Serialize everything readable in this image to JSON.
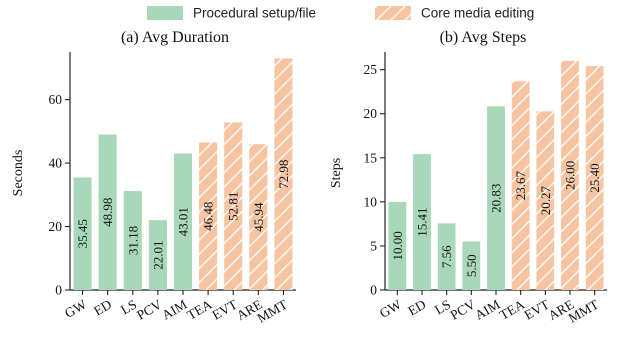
{
  "legend": [
    {
      "label": "Procedural setup/file",
      "color": "#a8d8b9"
    },
    {
      "label": "Core media editing",
      "color": "#f7c4a2"
    }
  ],
  "chart_data": [
    {
      "type": "bar",
      "title": "(a) Avg Duration",
      "ylabel": "Seconds",
      "ylim": [
        0,
        75
      ],
      "yticks": [
        0,
        20,
        40,
        60
      ],
      "categories": [
        "GW",
        "ED",
        "LS",
        "PCV",
        "AIM",
        "TEA",
        "EVT",
        "ARE",
        "MMT"
      ],
      "groups": [
        "Procedural setup/file",
        "Procedural setup/file",
        "Procedural setup/file",
        "Procedural setup/file",
        "Procedural setup/file",
        "Core media editing",
        "Core media editing",
        "Core media editing",
        "Core media editing"
      ],
      "values": [
        35.45,
        48.98,
        31.18,
        22.01,
        43.01,
        46.48,
        52.81,
        45.94,
        72.98
      ],
      "value_labels": [
        "35.45",
        "48.98",
        "31.18",
        "22.01",
        "43.01",
        "46.48",
        "52.81",
        "45.94",
        "72.98"
      ]
    },
    {
      "type": "bar",
      "title": "(b) Avg Steps",
      "ylabel": "Steps",
      "ylim": [
        0,
        27
      ],
      "yticks": [
        0,
        5,
        10,
        15,
        20,
        25
      ],
      "categories": [
        "GW",
        "ED",
        "LS",
        "PCV",
        "AIM",
        "TEA",
        "EVT",
        "ARE",
        "MMT"
      ],
      "groups": [
        "Procedural setup/file",
        "Procedural setup/file",
        "Procedural setup/file",
        "Procedural setup/file",
        "Procedural setup/file",
        "Core media editing",
        "Core media editing",
        "Core media editing",
        "Core media editing"
      ],
      "values": [
        10.0,
        15.41,
        7.56,
        5.5,
        20.83,
        23.67,
        20.27,
        26.0,
        25.4
      ],
      "value_labels": [
        "10.00",
        "15.41",
        "7.56",
        "5.50",
        "20.83",
        "23.67",
        "20.27",
        "26.00",
        "25.40"
      ]
    }
  ]
}
